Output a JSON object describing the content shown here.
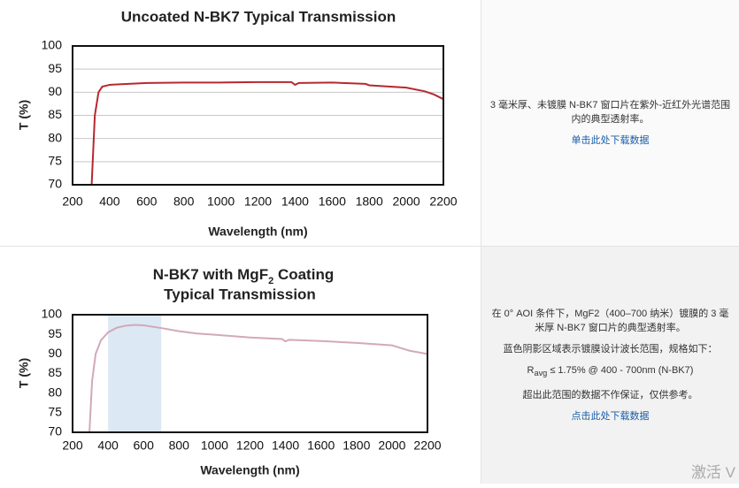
{
  "chart_data": [
    {
      "type": "line",
      "title": "Uncoated N-BK7 Typical Transmission",
      "xlabel": "Wavelength (nm)",
      "ylabel": "T (%)",
      "xlim": [
        200,
        2200
      ],
      "ylim": [
        70,
        100
      ],
      "xticks": [
        200,
        400,
        600,
        800,
        1000,
        1200,
        1400,
        1600,
        1800,
        2000,
        2200
      ],
      "yticks": [
        70,
        75,
        80,
        85,
        90,
        95,
        100
      ],
      "grid": true,
      "x": [
        303,
        320,
        340,
        360,
        400,
        600,
        800,
        1000,
        1200,
        1380,
        1400,
        1420,
        1600,
        1780,
        1800,
        2000,
        2100,
        2150,
        2200
      ],
      "series": [
        {
          "color": "#b5292f",
          "values": [
            70,
            85,
            90,
            91.2,
            91.6,
            92,
            92.1,
            92.1,
            92.2,
            92.2,
            91.6,
            92,
            92.1,
            91.8,
            91.5,
            91,
            90.2,
            89.5,
            88.5
          ]
        }
      ]
    },
    {
      "type": "line",
      "title": "N-BK7 with MgF",
      "title_subscript": "2",
      "title_suffix": " Coating",
      "title_line2": "Typical Transmission",
      "xlabel": "Wavelength (nm)",
      "ylabel": "T (%)",
      "xlim": [
        200,
        2200
      ],
      "ylim": [
        70,
        100
      ],
      "xticks": [
        200,
        400,
        600,
        800,
        1000,
        1200,
        1400,
        1600,
        1800,
        2000,
        2200
      ],
      "yticks": [
        70,
        75,
        80,
        85,
        90,
        95,
        100
      ],
      "grid": false,
      "highlight": [
        400,
        700
      ],
      "highlight_color": "#dce9f5",
      "x": [
        295,
        310,
        330,
        360,
        400,
        450,
        500,
        550,
        600,
        700,
        800,
        900,
        1000,
        1200,
        1380,
        1400,
        1420,
        1600,
        1800,
        2000,
        2100,
        2200
      ],
      "series": [
        {
          "color": "#d2a9b7",
          "values": [
            70,
            83,
            90,
            93.5,
            95.5,
            96.7,
            97.2,
            97.4,
            97.3,
            96.6,
            95.8,
            95.2,
            94.9,
            94.2,
            93.8,
            93.2,
            93.6,
            93.3,
            92.8,
            92.2,
            90.8,
            90
          ]
        }
      ]
    }
  ],
  "panels": [
    {
      "text": "3 毫米厚、未镀膜 N-BK7 窗口片在紫外-近红外光谱范围内的典型透射率。",
      "link": "单击此处下载数据"
    },
    {
      "text": "在 0° AOI 条件下，MgF2（400–700 纳米）镀膜的 3 毫米厚 N-BK7 窗口片的典型透射率。",
      "note": "蓝色阴影区域表示镀膜设计波长范围，规格如下：",
      "spec_symbol": "R",
      "spec_subscript": "avg",
      "spec_text": " ≤ 1.75% @ 400 - 700nm (N-BK7)",
      "disclaimer": "超出此范围的数据不作保证，仅供参考。",
      "link": "点击此处下载数据"
    }
  ],
  "watermark": "激活 V"
}
